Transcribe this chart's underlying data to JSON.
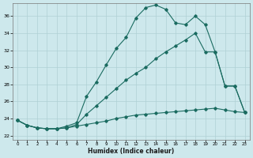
{
  "xlabel": "Humidex (Indice chaleur)",
  "bg_color": "#cde8ec",
  "line_color": "#1a6b60",
  "grid_color": "#afd0d4",
  "xlim": [
    -0.5,
    23.5
  ],
  "ylim": [
    21.5,
    37.5
  ],
  "xticks": [
    0,
    1,
    2,
    3,
    4,
    5,
    6,
    7,
    8,
    9,
    10,
    11,
    12,
    13,
    14,
    15,
    16,
    17,
    18,
    19,
    20,
    21,
    22,
    23
  ],
  "yticks": [
    22,
    24,
    26,
    28,
    30,
    32,
    34,
    36
  ],
  "curve1_x": [
    0,
    1,
    2,
    3,
    4,
    5,
    6,
    7,
    8,
    9,
    10,
    11,
    12,
    13,
    14,
    15,
    16,
    17,
    18,
    19,
    20,
    21,
    22,
    23
  ],
  "curve1_y": [
    23.8,
    23.2,
    22.9,
    22.8,
    22.8,
    23.1,
    23.5,
    26.6,
    28.3,
    30.3,
    32.2,
    33.5,
    35.8,
    37.0,
    37.3,
    36.8,
    35.2,
    35.0,
    36.0,
    35.0,
    31.8,
    27.8,
    27.8,
    24.7
  ],
  "curve2_x": [
    0,
    1,
    2,
    3,
    4,
    5,
    6,
    7,
    8,
    9,
    10,
    11,
    12,
    13,
    14,
    15,
    16,
    17,
    18,
    19,
    20,
    21,
    22,
    23
  ],
  "curve2_y": [
    23.8,
    23.2,
    22.9,
    22.8,
    22.8,
    22.9,
    23.3,
    24.5,
    25.5,
    26.5,
    27.5,
    28.5,
    29.3,
    30.0,
    31.0,
    31.8,
    32.5,
    33.2,
    34.0,
    31.8,
    31.8,
    27.8,
    27.8,
    24.7
  ],
  "curve3_x": [
    0,
    1,
    2,
    3,
    4,
    5,
    6,
    7,
    8,
    9,
    10,
    11,
    12,
    13,
    14,
    15,
    16,
    17,
    18,
    19,
    20,
    21,
    22,
    23
  ],
  "curve3_y": [
    23.8,
    23.2,
    22.9,
    22.8,
    22.8,
    22.9,
    23.1,
    23.3,
    23.5,
    23.7,
    24.0,
    24.2,
    24.4,
    24.5,
    24.6,
    24.7,
    24.8,
    24.9,
    25.0,
    25.1,
    25.2,
    25.0,
    24.8,
    24.7
  ]
}
